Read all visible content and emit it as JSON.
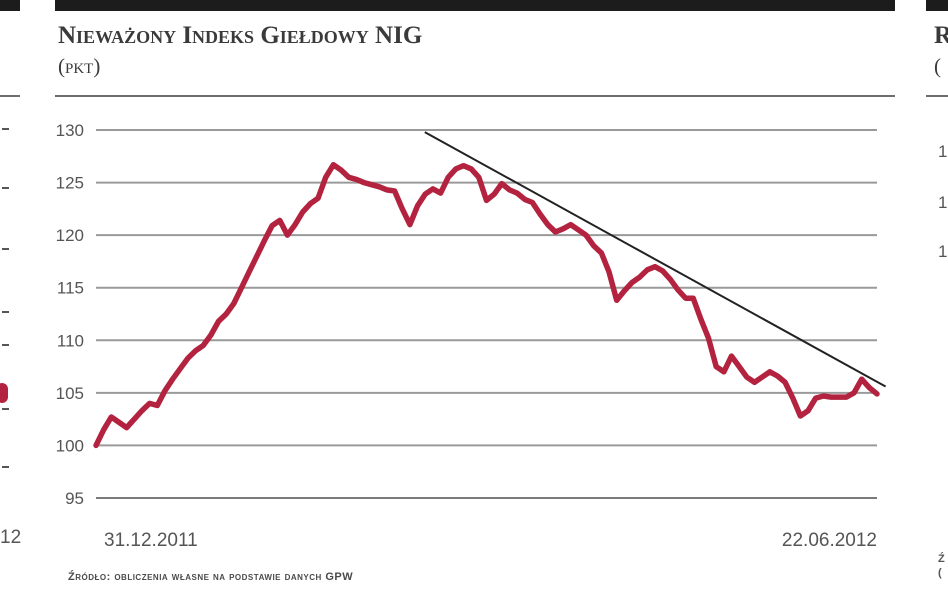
{
  "chart_data": {
    "type": "line",
    "title": "Nieważony Indeks Giełdowy NIG",
    "subtitle": "(pkt)",
    "xlabel": "",
    "ylabel": "",
    "ylim": [
      95,
      130
    ],
    "yticks": [
      95,
      100,
      105,
      110,
      115,
      120,
      125,
      130
    ],
    "x_start_label": "31.12.2011",
    "x_end_label": "22.06.2012",
    "grid": true,
    "series": [
      {
        "name": "",
        "color": "#b3233f",
        "values": [
          100.0,
          101.5,
          102.7,
          102.2,
          101.7,
          102.5,
          103.3,
          104.0,
          103.8,
          105.2,
          106.3,
          107.3,
          108.3,
          109.0,
          109.5,
          110.5,
          111.8,
          112.5,
          113.5,
          115.0,
          116.5,
          118.0,
          119.5,
          120.9,
          121.4,
          120.0,
          121.0,
          122.2,
          123.0,
          123.5,
          125.5,
          126.7,
          126.2,
          125.5,
          125.3,
          125.0,
          124.8,
          124.6,
          124.3,
          124.2,
          122.5,
          121.0,
          122.8,
          123.9,
          124.4,
          124.0,
          125.5,
          126.3,
          126.6,
          126.3,
          125.5,
          123.3,
          123.9,
          124.9,
          124.3,
          124.0,
          123.4,
          123.1,
          122.0,
          121.0,
          120.3,
          120.6,
          121.0,
          120.5,
          120.0,
          119.0,
          118.3,
          116.5,
          113.8,
          114.7,
          115.5,
          116.0,
          116.7,
          117.0,
          116.6,
          115.8,
          114.8,
          114.0,
          114.0,
          112.0,
          110.2,
          107.5,
          107.0,
          108.5,
          107.5,
          106.5,
          106.0,
          106.5,
          107.0,
          106.6,
          106.0,
          104.5,
          102.8,
          103.3,
          104.5,
          104.7,
          104.6,
          104.6,
          104.6,
          105.0,
          106.3,
          105.5,
          104.9
        ]
      }
    ],
    "trendline": {
      "color": "#222222",
      "from_fraction": 0.421,
      "from_value": 129.8,
      "to_fraction": 1.011,
      "to_value": 105.6
    },
    "source": "Źródło: obliczenia własne na podstawie danych GPW"
  },
  "neighbors": {
    "left_label": "12",
    "right_title": "R",
    "right_sub": "(",
    "right_ticks": [
      "1",
      "1",
      "1"
    ],
    "right_source": [
      "Ź",
      "("
    ]
  }
}
